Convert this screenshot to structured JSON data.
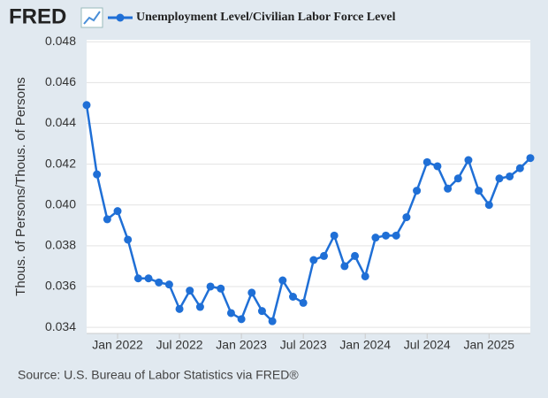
{
  "logo": "FRED",
  "source": "Source: U.S. Bureau of Labor Statistics via FRED®",
  "chart_data": {
    "type": "line",
    "y_label": "Thous. of Persons/Thous. of Persons",
    "categories": [
      null,
      null,
      null,
      "Jan 2022",
      null,
      null,
      null,
      null,
      null,
      "Jul 2022",
      null,
      null,
      null,
      null,
      null,
      "Jan 2023",
      null,
      null,
      null,
      null,
      null,
      "Jul 2023",
      null,
      null,
      null,
      null,
      null,
      "Jan 2024",
      null,
      null,
      null,
      null,
      null,
      "Jul 2024",
      null,
      null,
      null,
      null,
      null,
      "Jan 2025",
      null,
      null,
      null,
      null
    ],
    "series": [
      {
        "name": "Unemployment Level/Civilian Labor Force Level",
        "color": "#1f6fd6",
        "values": [
          0.0449,
          0.0415,
          0.0393,
          0.0397,
          0.0383,
          0.0364,
          0.0364,
          0.0362,
          0.0361,
          0.0349,
          0.0358,
          0.035,
          0.036,
          0.0359,
          0.0347,
          0.0344,
          0.0357,
          0.0348,
          0.0343,
          0.0363,
          0.0355,
          0.0352,
          0.0373,
          0.0375,
          0.0385,
          0.037,
          0.0375,
          0.0365,
          0.0384,
          0.0385,
          0.0385,
          0.0394,
          0.0407,
          0.0421,
          0.0419,
          0.0408,
          0.0413,
          0.0422,
          0.0407,
          0.04,
          0.0413,
          0.0414,
          0.0418,
          0.0423
        ]
      }
    ],
    "ylim": [
      0.0337,
      0.0481
    ],
    "yticks": [
      0.034,
      0.036,
      0.038,
      {
        "value": 0.04,
        "label": "0.040"
      },
      0.042,
      0.044,
      0.046,
      0.048
    ],
    "grid": true
  }
}
